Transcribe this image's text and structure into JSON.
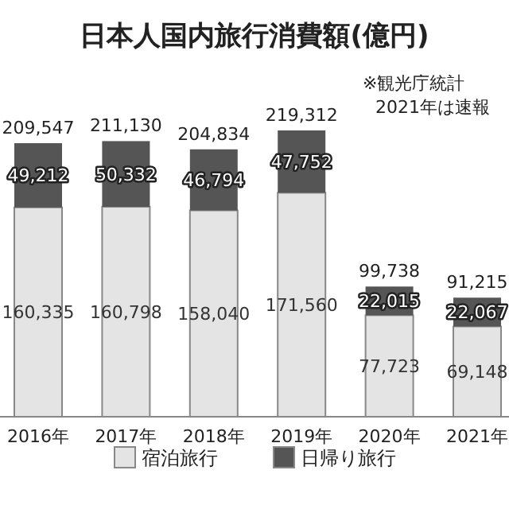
{
  "chart_data": {
    "type": "bar",
    "title": "日本人国内旅行消費額(億円)",
    "annotations": [
      "※観光庁統計",
      "2021年は速報"
    ],
    "categories": [
      "2016年",
      "2017年",
      "2018年",
      "2019年",
      "2020年",
      "2021年"
    ],
    "stacked": true,
    "legend": "bottom",
    "series": [
      {
        "name": "宿泊旅行",
        "color": "#e4e4e4",
        "values": [
          160335,
          160798,
          158040,
          171560,
          77723,
          69148
        ],
        "value_labels": [
          "160,335",
          "160,798",
          "158,040",
          "171,560",
          "77,723",
          "69,148"
        ]
      },
      {
        "name": "日帰り旅行",
        "color": "#555555",
        "values": [
          49212,
          50332,
          46794,
          47752,
          22015,
          22067
        ],
        "value_labels": [
          "49,212",
          "50,332",
          "46,794",
          "47,752",
          "22,015",
          "22,067"
        ]
      }
    ],
    "totals": [
      "209,547",
      "211,130",
      "204,834",
      "219,312",
      "99,738",
      "91,215"
    ]
  }
}
